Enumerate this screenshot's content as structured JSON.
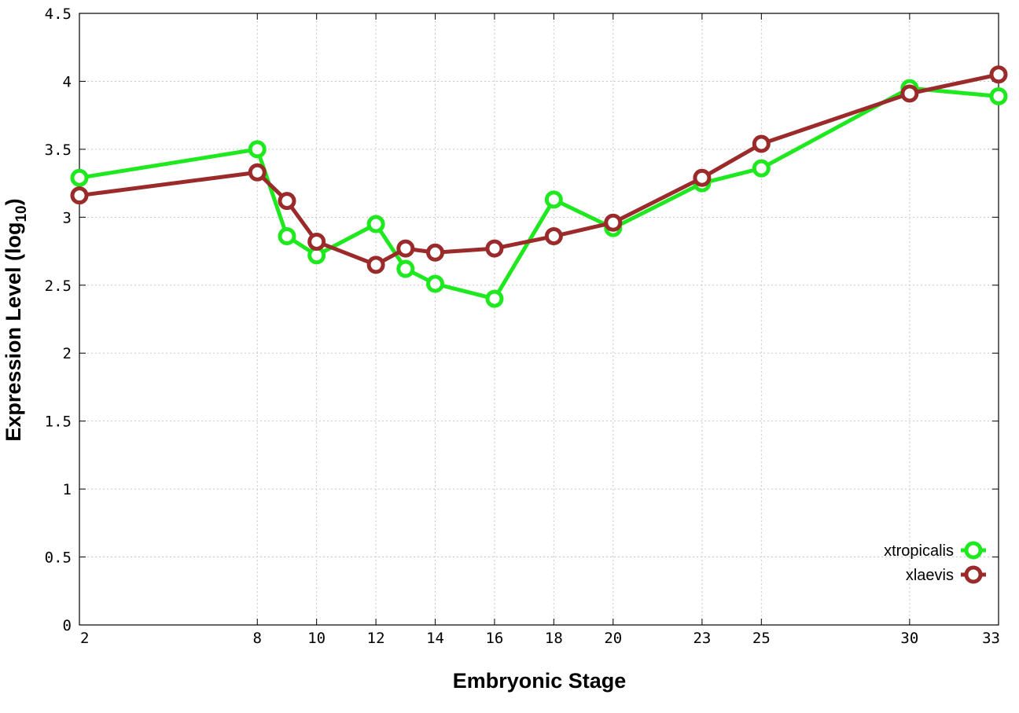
{
  "chart_data": {
    "type": "line",
    "xlabel": "Embryonic Stage",
    "ylabel": "Expression Level (log",
    "ylabel_subscript": "10",
    "ylabel_suffix": ")",
    "x_ticks": [
      2,
      8,
      10,
      12,
      14,
      16,
      18,
      20,
      23,
      25,
      30,
      33
    ],
    "y_ticks": [
      "0",
      "0.5",
      "1",
      "1.5",
      "2",
      "2.5",
      "3",
      "3.5",
      "4",
      "4.5"
    ],
    "xlim": [
      2,
      33
    ],
    "ylim": [
      0,
      4.5
    ],
    "grid": true,
    "legend_position": "bottom-right",
    "series": [
      {
        "name": "xtropicalis",
        "color": "#1ee81e",
        "x": [
          2,
          8,
          9,
          10,
          12,
          13,
          14,
          16,
          18,
          20,
          23,
          25,
          30,
          33
        ],
        "y": [
          3.29,
          3.5,
          2.86,
          2.72,
          2.95,
          2.62,
          2.51,
          2.4,
          3.13,
          2.92,
          3.25,
          3.36,
          3.95,
          3.89
        ]
      },
      {
        "name": "xlaevis",
        "color": "#9b2a2a",
        "x": [
          2,
          8,
          9,
          10,
          12,
          13,
          14,
          16,
          18,
          20,
          23,
          25,
          30,
          33
        ],
        "y": [
          3.16,
          3.33,
          3.12,
          2.82,
          2.65,
          2.77,
          2.74,
          2.77,
          2.86,
          2.96,
          3.29,
          3.54,
          3.91,
          4.05
        ]
      }
    ]
  }
}
